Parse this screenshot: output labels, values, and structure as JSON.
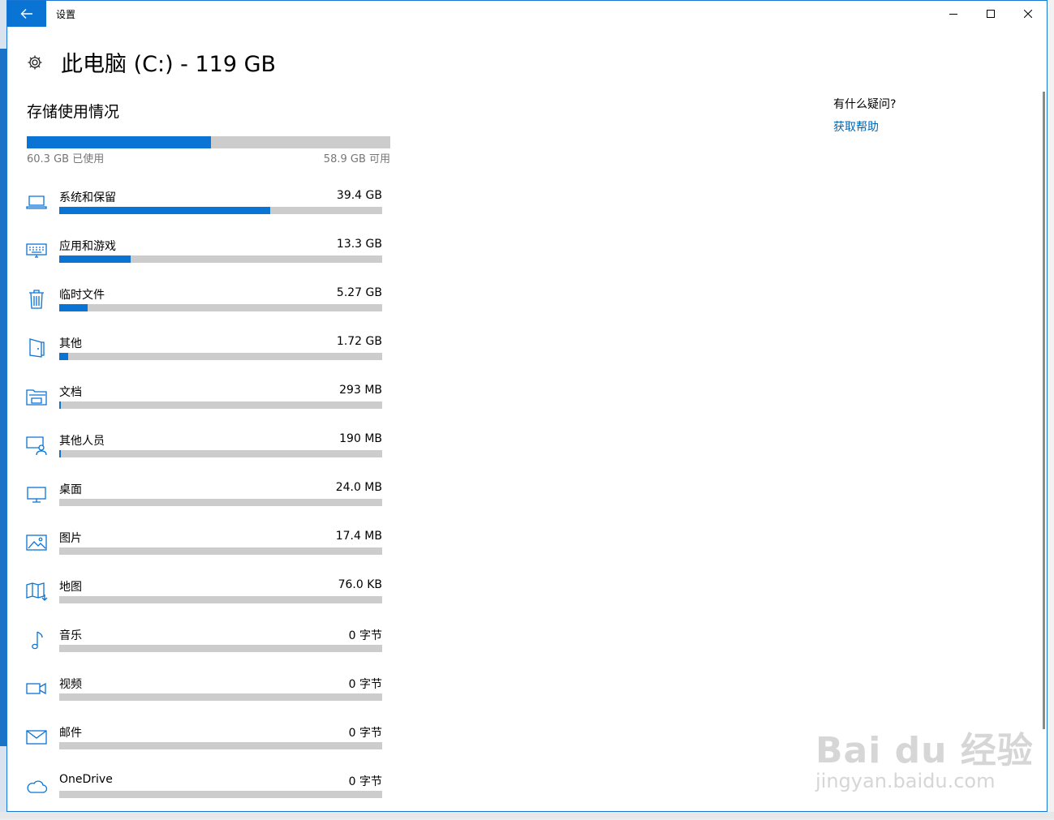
{
  "window": {
    "title": "设置",
    "back_icon": "arrow-left-icon",
    "minimize_icon": "minimize-icon",
    "maximize_icon": "maximize-icon",
    "close_icon": "close-icon"
  },
  "header": {
    "icon": "gear-icon",
    "title": "此电脑 (C:) - 119 GB"
  },
  "storage": {
    "section_title": "存储使用情况",
    "used_label": "60.3 GB 已使用",
    "free_label": "58.9 GB 可用",
    "used_fraction": 0.506
  },
  "categories": [
    {
      "name": "系统和保留",
      "size": "39.4 GB",
      "fraction": 0.653,
      "icon": "laptop-icon"
    },
    {
      "name": "应用和游戏",
      "size": "13.3 GB",
      "fraction": 0.22,
      "icon": "keyboard-icon"
    },
    {
      "name": "临时文件",
      "size": "5.27 GB",
      "fraction": 0.087,
      "icon": "trash-icon"
    },
    {
      "name": "其他",
      "size": "1.72 GB",
      "fraction": 0.028,
      "icon": "door-icon"
    },
    {
      "name": "文档",
      "size": "293 MB",
      "fraction": 0.005,
      "icon": "folder-icon"
    },
    {
      "name": "其他人员",
      "size": "190 MB",
      "fraction": 0.003,
      "icon": "user-screen-icon"
    },
    {
      "name": "桌面",
      "size": "24.0 MB",
      "fraction": 0,
      "icon": "monitor-icon"
    },
    {
      "name": "图片",
      "size": "17.4 MB",
      "fraction": 0,
      "icon": "picture-icon"
    },
    {
      "name": "地图",
      "size": "76.0 KB",
      "fraction": 0,
      "icon": "map-icon"
    },
    {
      "name": "音乐",
      "size": "0 字节",
      "fraction": 0,
      "icon": "music-icon"
    },
    {
      "name": "视频",
      "size": "0 字节",
      "fraction": 0,
      "icon": "video-icon"
    },
    {
      "name": "邮件",
      "size": "0 字节",
      "fraction": 0,
      "icon": "mail-icon"
    },
    {
      "name": "OneDrive",
      "size": "0 字节",
      "fraction": 0,
      "icon": "cloud-icon"
    }
  ],
  "help": {
    "question": "有什么疑问?",
    "link": "获取帮助"
  },
  "watermark": {
    "brand": "Bai du 经验",
    "url": "jingyan.baidu.com"
  },
  "colors": {
    "accent": "#0a74d5",
    "bar_bg": "#cccccc",
    "link": "#0067b8"
  }
}
